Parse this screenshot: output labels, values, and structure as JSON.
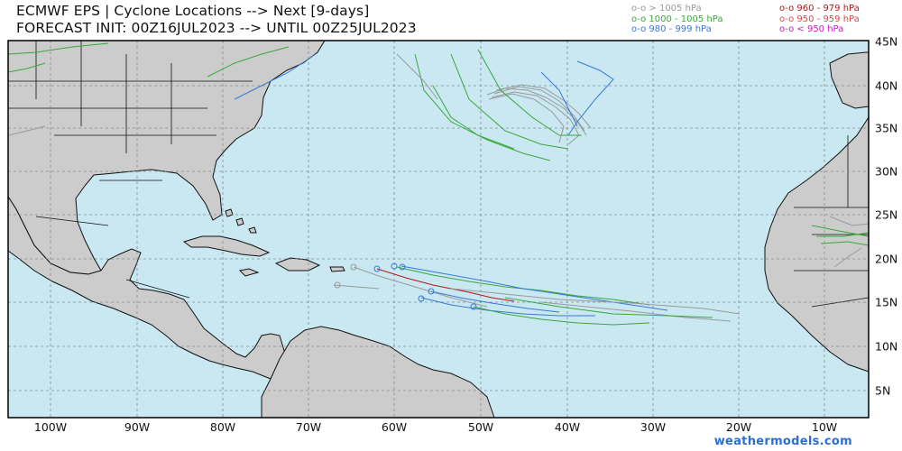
{
  "header": {
    "title_line1": "ECMWF EPS | Cyclone Locations --> Next [9-days]",
    "title_line2": "FORECAST INIT: 00Z16JUL2023 --> UNTIL 00Z25JUL2023"
  },
  "legend_left": [
    {
      "text": "o-o > 1005 hPa",
      "color": "#9a9a9a"
    },
    {
      "text": "o-o 1000 - 1005 hPa",
      "color": "#3aa83a"
    },
    {
      "text": "o-o 980 - 999 hPa",
      "color": "#3a78d6"
    }
  ],
  "legend_right": [
    {
      "text": "o-o 960 - 979 hPa",
      "color": "#b01818"
    },
    {
      "text": "o-o 950 - 959 hPa",
      "color": "#e04848"
    },
    {
      "text": "o-o < 950 hPa",
      "color": "#c020c0"
    }
  ],
  "axes": {
    "lon_labels": [
      "100W",
      "90W",
      "80W",
      "70W",
      "60W",
      "50W",
      "40W",
      "30W",
      "20W",
      "10W"
    ],
    "lat_labels": [
      "45N",
      "40N",
      "35N",
      "30N",
      "25N",
      "20N",
      "15N",
      "10N",
      "5N"
    ]
  },
  "colors": {
    "ocean": "#c9e8f2",
    "land": "#cccccc",
    "grid": "#8a8a8a",
    "pressure_gt1005": "#9a9a9a",
    "pressure_1000_1005": "#3aa83a",
    "pressure_980_999": "#3a78d6",
    "pressure_960_979": "#b01818"
  },
  "credit": "weathermodels.com"
}
